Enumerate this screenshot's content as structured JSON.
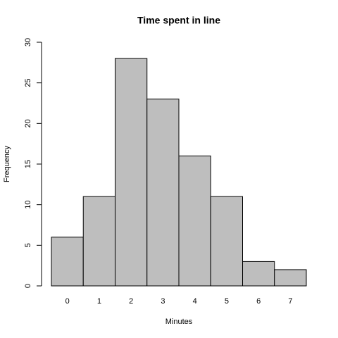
{
  "chart_data": {
    "type": "bar",
    "title": "Time spent in line",
    "xlabel": "Minutes",
    "ylabel": "Frequency",
    "categories": [
      "0",
      "1",
      "2",
      "3",
      "4",
      "5",
      "6",
      "7"
    ],
    "values": [
      6,
      11,
      28,
      23,
      16,
      11,
      3,
      2
    ],
    "color": "#bebebe",
    "ylim": [
      0,
      30
    ],
    "yticks": [
      0,
      5,
      10,
      15,
      20,
      25,
      30
    ],
    "grid": false
  }
}
